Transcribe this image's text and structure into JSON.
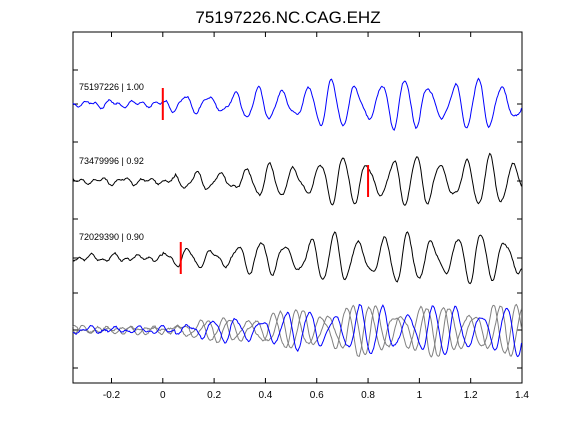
{
  "chart_data": {
    "type": "line",
    "title": "75197226.NC.CAG.EHZ",
    "xlabel": "",
    "ylabel": "",
    "xlim": [
      -0.35,
      1.4
    ],
    "x_ticks": [
      -0.2,
      0,
      0.2,
      0.4,
      0.6,
      0.8,
      1,
      1.2,
      1.4
    ],
    "x_tick_labels": [
      "-0.2",
      "0",
      "0.2",
      "0.4",
      "0.6",
      "0.8",
      "1",
      "1.2",
      "1.4"
    ],
    "grid": false,
    "traces": [
      {
        "label": "75197226 | 1.00",
        "color": "#0000ff",
        "pick_time": 0.0,
        "seed": 1
      },
      {
        "label": "73479996 | 0.92",
        "color": "#000000",
        "pick_time": 0.8,
        "seed": 2
      },
      {
        "label": "72029390 | 0.90",
        "color": "#000000",
        "pick_time": 0.07,
        "seed": 3
      }
    ],
    "stack": {
      "series_colors": [
        "#808080",
        "#808080",
        "#0000ff"
      ]
    },
    "pick_color": "#ff0000"
  }
}
